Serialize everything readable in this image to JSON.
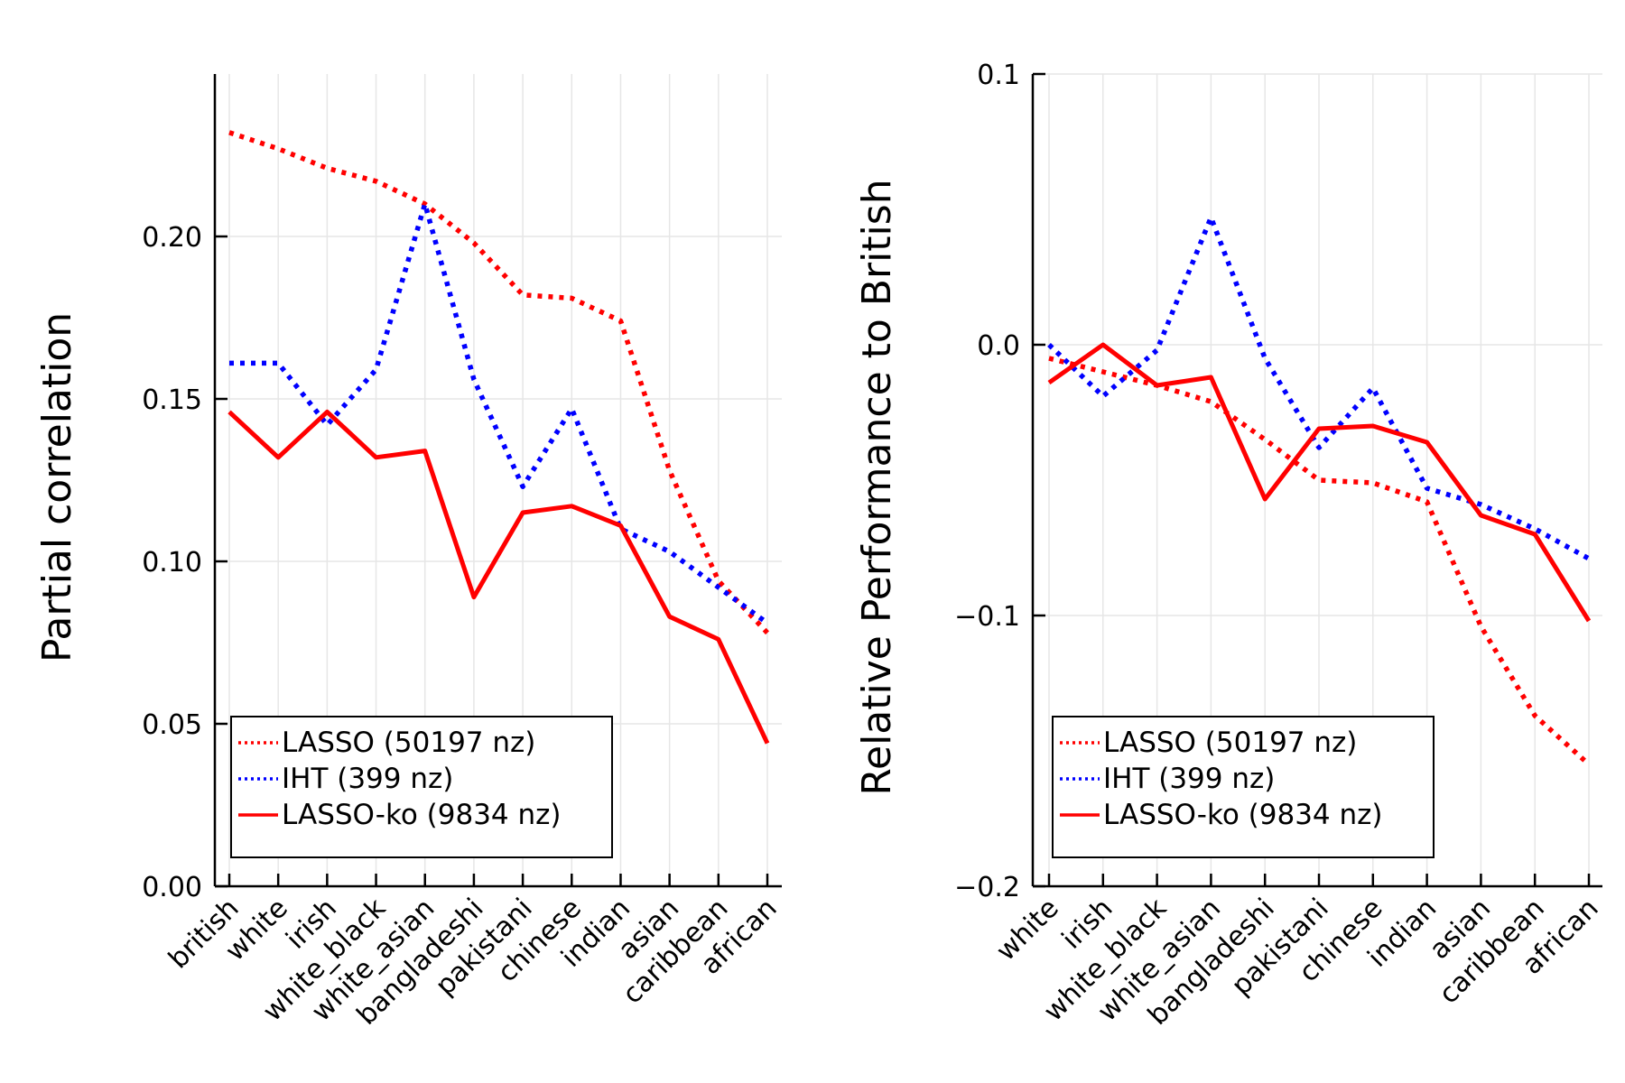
{
  "chart_data": [
    {
      "type": "line",
      "title": "",
      "xlabel": "",
      "ylabel": "Partial correlation",
      "categories": [
        "british",
        "white",
        "irish",
        "white_black",
        "white_asian",
        "bangladeshi",
        "pakistani",
        "chinese",
        "indian",
        "asian",
        "caribbean",
        "african"
      ],
      "ylim": [
        0.0,
        0.25
      ],
      "yticks": [
        "0.00",
        "0.05",
        "0.10",
        "0.15",
        "0.20"
      ],
      "grid": true,
      "legend_position": "bottom-left",
      "series": [
        {
          "name": "LASSO (50197 nz)",
          "color": "#ff0000",
          "style": "dotted",
          "values": [
            0.232,
            0.227,
            0.221,
            0.217,
            0.21,
            0.198,
            0.182,
            0.181,
            0.174,
            0.128,
            0.094,
            0.078
          ]
        },
        {
          "name": "IHT (399 nz)",
          "color": "#0000ff",
          "style": "dotted",
          "values": [
            0.161,
            0.161,
            0.142,
            0.159,
            0.21,
            0.156,
            0.123,
            0.147,
            0.11,
            0.103,
            0.092,
            0.081
          ]
        },
        {
          "name": "LASSO-ko (9834 nz)",
          "color": "#ff0000",
          "style": "solid",
          "values": [
            0.146,
            0.132,
            0.146,
            0.132,
            0.134,
            0.089,
            0.115,
            0.117,
            0.111,
            0.083,
            0.076,
            0.044
          ]
        }
      ]
    },
    {
      "type": "line",
      "title": "",
      "xlabel": "",
      "ylabel": "Relative Performance to British",
      "categories": [
        "white",
        "irish",
        "white_black",
        "white_asian",
        "bangladeshi",
        "pakistani",
        "chinese",
        "indian",
        "asian",
        "caribbean",
        "african"
      ],
      "ylim": [
        -0.2,
        0.1
      ],
      "yticks": [
        "−0.2",
        "−0.1",
        "0.0",
        "0.1"
      ],
      "grid": true,
      "legend_position": "bottom-left",
      "series": [
        {
          "name": "LASSO (50197 nz)",
          "color": "#ff0000",
          "style": "dotted",
          "values": [
            -0.005,
            -0.01,
            -0.015,
            -0.021,
            -0.035,
            -0.05,
            -0.051,
            -0.058,
            -0.104,
            -0.137,
            -0.155
          ]
        },
        {
          "name": "IHT (399 nz)",
          "color": "#0000ff",
          "style": "dotted",
          "values": [
            0.0,
            -0.019,
            -0.002,
            0.047,
            -0.005,
            -0.038,
            -0.016,
            -0.053,
            -0.059,
            -0.068,
            -0.079
          ]
        },
        {
          "name": "LASSO-ko (9834 nz)",
          "color": "#ff0000",
          "style": "solid",
          "values": [
            -0.014,
            0.0,
            -0.015,
            -0.012,
            -0.057,
            -0.031,
            -0.03,
            -0.036,
            -0.063,
            -0.07,
            -0.102
          ]
        }
      ]
    }
  ]
}
